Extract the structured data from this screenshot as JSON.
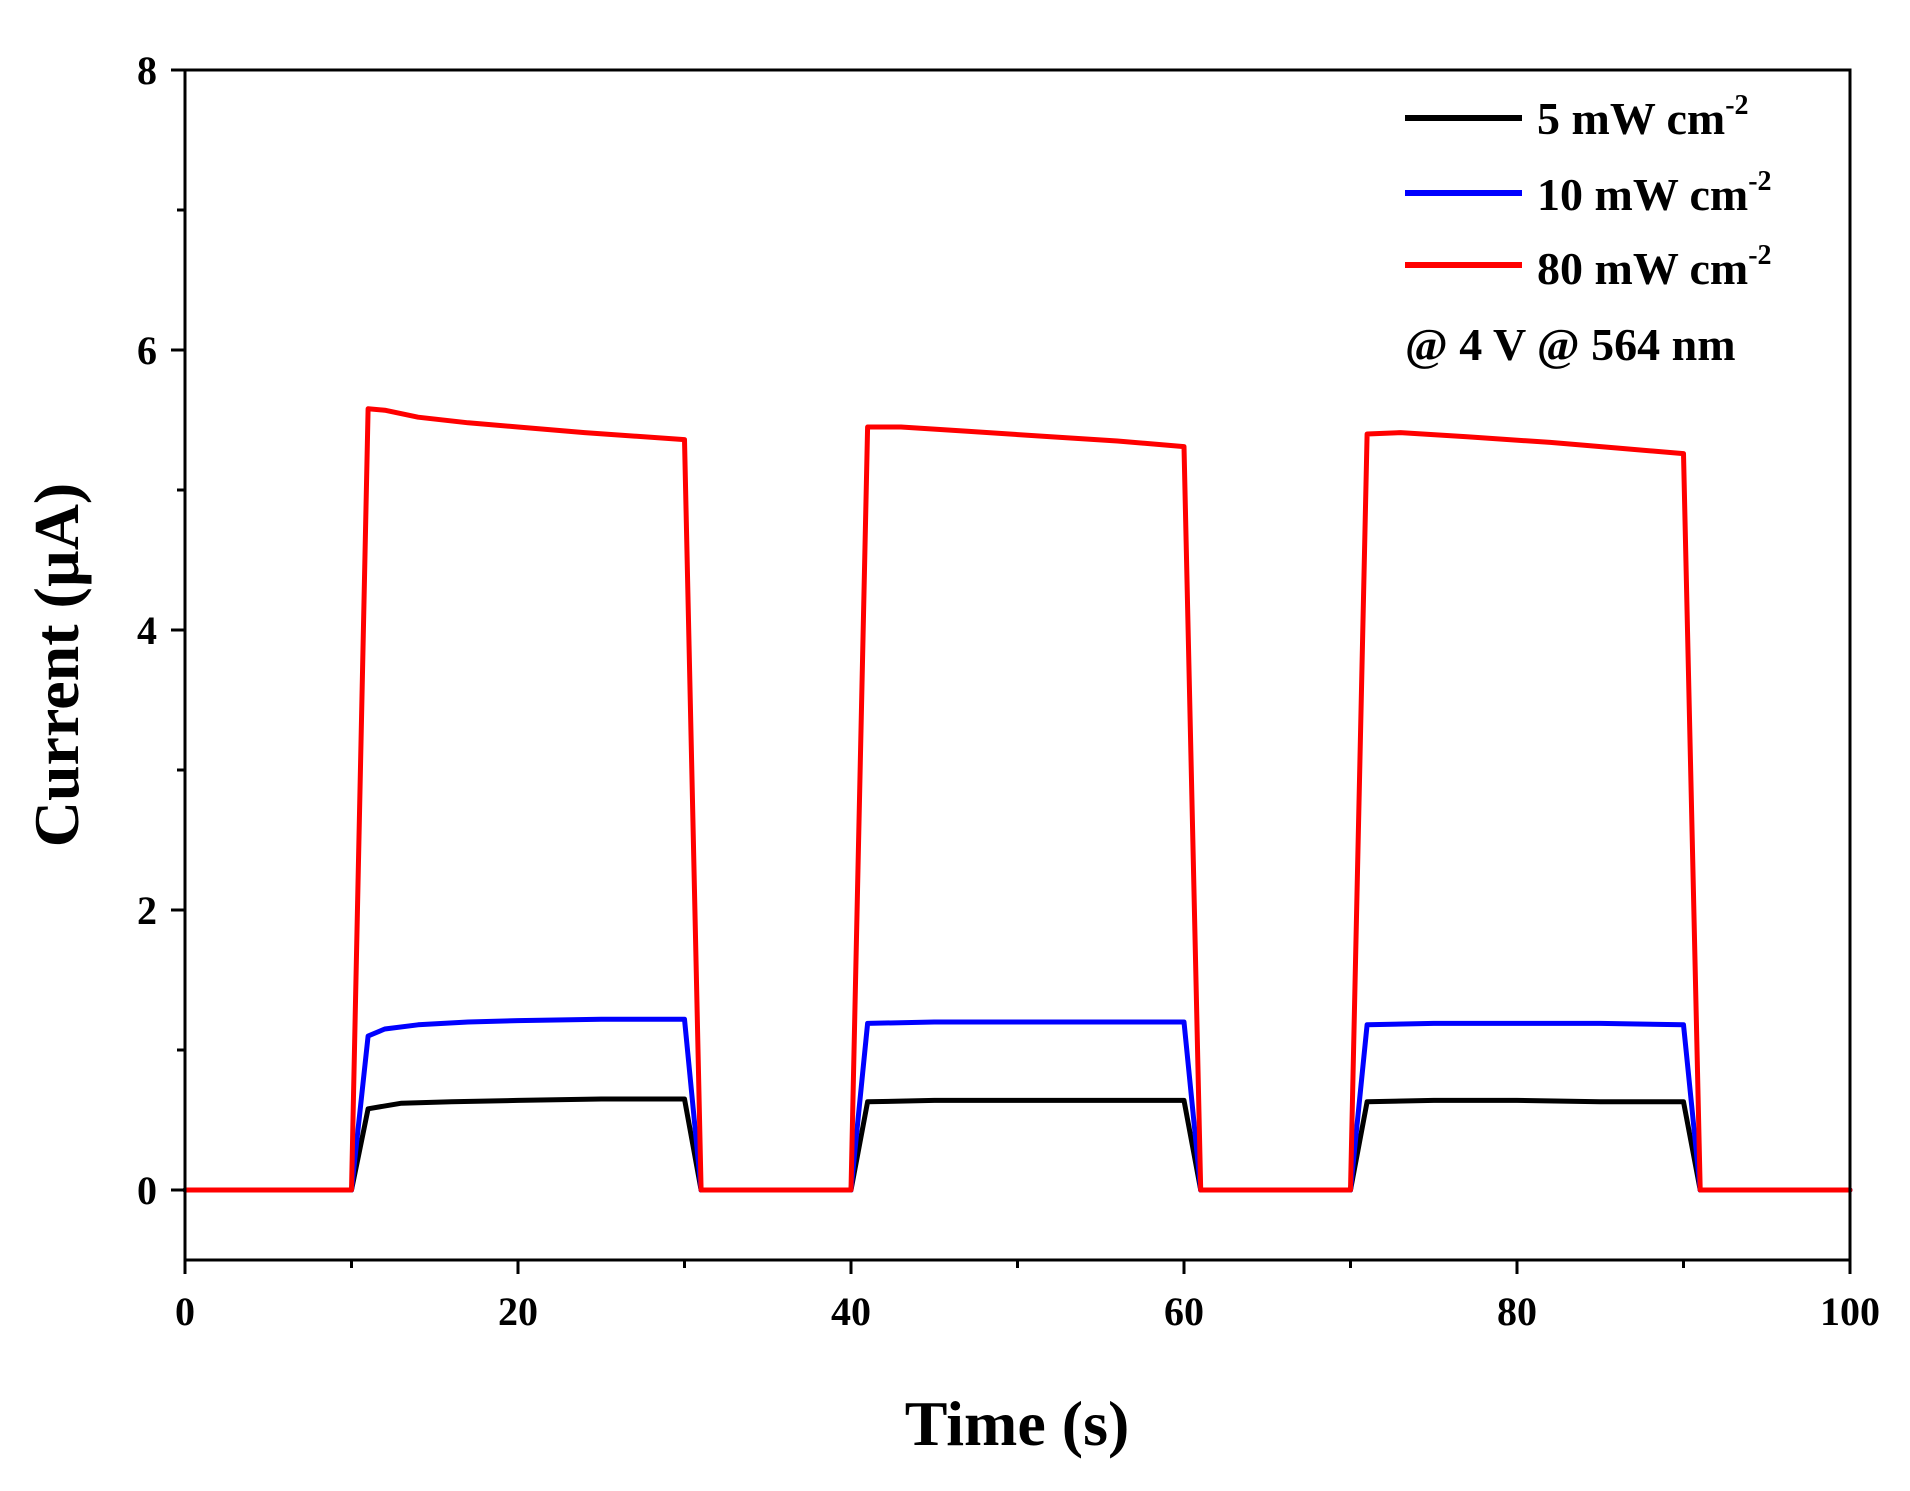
{
  "chart_data": {
    "type": "line",
    "title": "",
    "xlabel": "Time (s)",
    "ylabel": "Current (µA)",
    "xlim": [
      0,
      100
    ],
    "ylim": [
      -0.5,
      8
    ],
    "xticks": [
      0,
      20,
      40,
      60,
      80,
      100
    ],
    "yticks": [
      0,
      2,
      4,
      6,
      8
    ],
    "xtick_labels": [
      "0",
      "20",
      "40",
      "60",
      "80",
      "100"
    ],
    "ytick_labels": [
      "0",
      "2",
      "4",
      "6",
      "8"
    ],
    "x_minor_step": 10,
    "y_minor_step": 1,
    "grid": false,
    "legend_position": "top-right",
    "annotation": "@ 4 V @ 564 nm",
    "series": [
      {
        "name": "5 mW cm-2",
        "label_main": "5 mW cm",
        "label_sup": "-2",
        "color": "#000000",
        "points": [
          [
            0,
            0
          ],
          [
            10,
            0
          ],
          [
            11,
            0.58
          ],
          [
            13,
            0.62
          ],
          [
            16,
            0.63
          ],
          [
            20,
            0.64
          ],
          [
            25,
            0.65
          ],
          [
            30,
            0.65
          ],
          [
            31,
            0
          ],
          [
            40,
            0
          ],
          [
            41,
            0.63
          ],
          [
            45,
            0.64
          ],
          [
            50,
            0.64
          ],
          [
            55,
            0.64
          ],
          [
            60,
            0.64
          ],
          [
            61,
            0
          ],
          [
            70,
            0
          ],
          [
            71,
            0.63
          ],
          [
            75,
            0.64
          ],
          [
            80,
            0.64
          ],
          [
            85,
            0.63
          ],
          [
            90,
            0.63
          ],
          [
            91,
            0
          ],
          [
            100,
            0
          ]
        ]
      },
      {
        "name": "10 mW cm-2",
        "label_main": "10 mW cm",
        "label_sup": "-2",
        "color": "#0000ff",
        "points": [
          [
            0,
            0
          ],
          [
            10,
            0
          ],
          [
            11,
            1.1
          ],
          [
            12,
            1.15
          ],
          [
            14,
            1.18
          ],
          [
            17,
            1.2
          ],
          [
            20,
            1.21
          ],
          [
            25,
            1.22
          ],
          [
            30,
            1.22
          ],
          [
            31,
            0
          ],
          [
            40,
            0
          ],
          [
            41,
            1.19
          ],
          [
            45,
            1.2
          ],
          [
            50,
            1.2
          ],
          [
            55,
            1.2
          ],
          [
            60,
            1.2
          ],
          [
            61,
            0
          ],
          [
            70,
            0
          ],
          [
            71,
            1.18
          ],
          [
            75,
            1.19
          ],
          [
            80,
            1.19
          ],
          [
            85,
            1.19
          ],
          [
            90,
            1.18
          ],
          [
            91,
            0
          ],
          [
            100,
            0
          ]
        ]
      },
      {
        "name": "80 mW cm-2",
        "label_main": "80 mW cm",
        "label_sup": "-2",
        "color": "#ff0000",
        "points": [
          [
            0,
            0
          ],
          [
            10,
            0
          ],
          [
            11,
            5.58
          ],
          [
            12,
            5.57
          ],
          [
            14,
            5.52
          ],
          [
            17,
            5.48
          ],
          [
            20,
            5.45
          ],
          [
            24,
            5.41
          ],
          [
            30,
            5.36
          ],
          [
            31,
            0
          ],
          [
            40,
            0
          ],
          [
            41,
            5.45
          ],
          [
            43,
            5.45
          ],
          [
            47,
            5.42
          ],
          [
            52,
            5.38
          ],
          [
            56,
            5.35
          ],
          [
            60,
            5.31
          ],
          [
            61,
            0
          ],
          [
            70,
            0
          ],
          [
            71,
            5.4
          ],
          [
            73,
            5.41
          ],
          [
            77,
            5.38
          ],
          [
            82,
            5.34
          ],
          [
            86,
            5.3
          ],
          [
            90,
            5.26
          ],
          [
            91,
            0
          ],
          [
            100,
            0
          ]
        ]
      }
    ]
  }
}
